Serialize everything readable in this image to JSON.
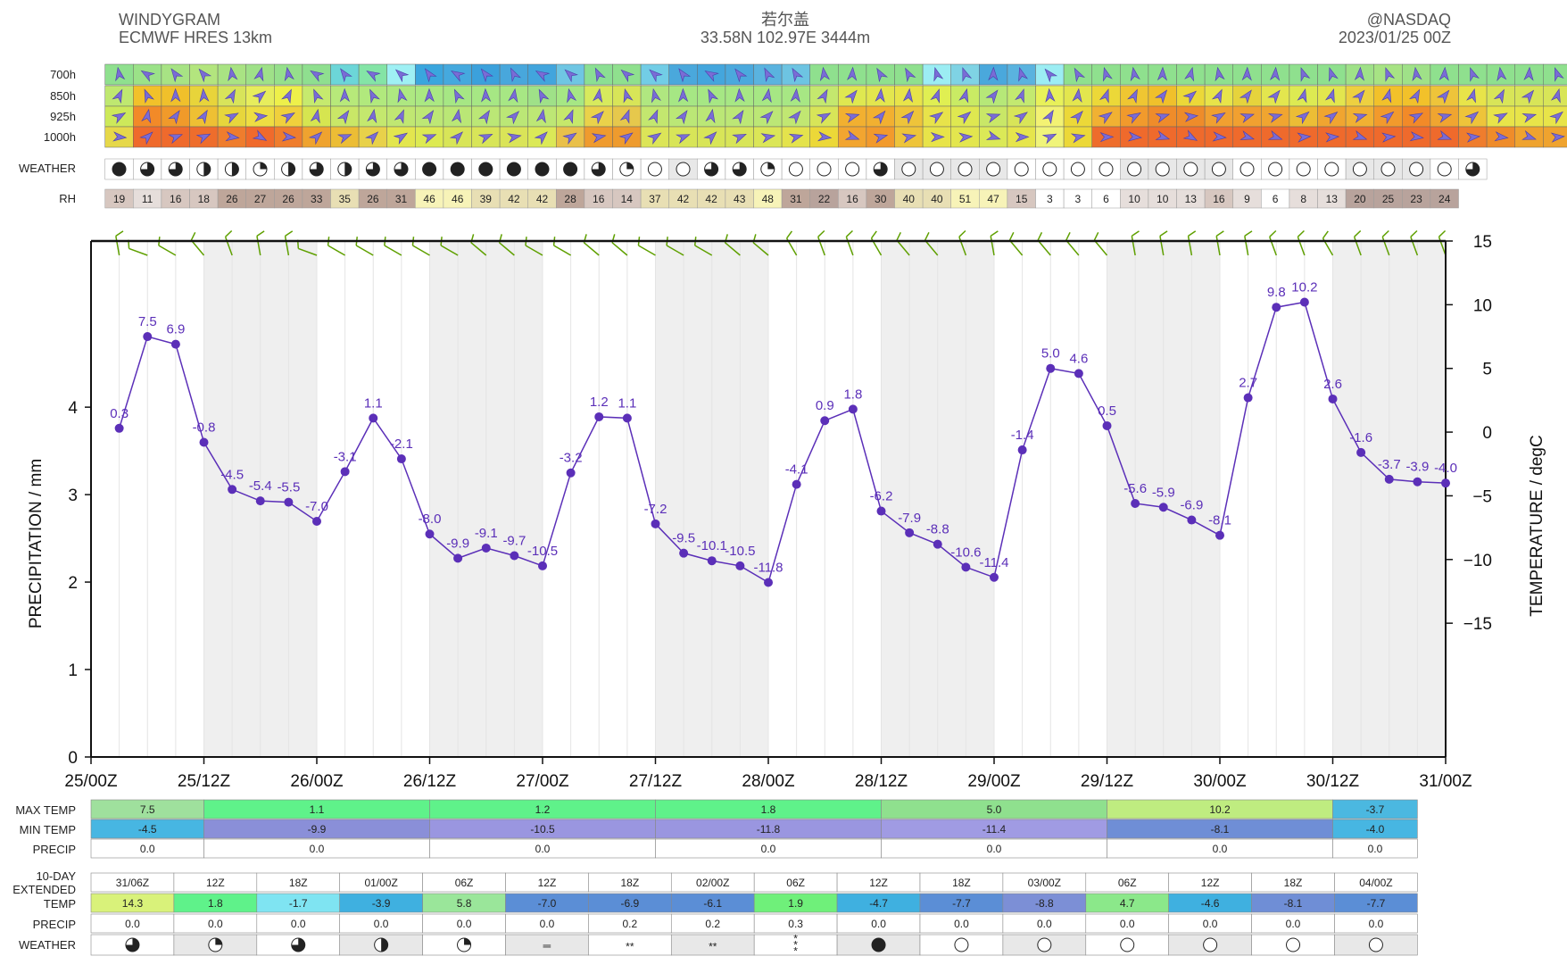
{
  "header": {
    "left_title": "WINDYGRAM",
    "left_sub": "ECMWF HRES 13km",
    "center_title": "若尔盖",
    "center_sub": "33.58N 102.97E 3444m",
    "right_title": "@NASDAQ",
    "right_sub": "2023/01/25 00Z"
  },
  "colors": {
    "temp_line": "#5b2fb8",
    "night_band": "#efefef",
    "wind_barb": "#5fa000",
    "arrow": "#7a6cd6"
  },
  "pressure_rows": {
    "labels": [
      "700h",
      "850h",
      "925h",
      "1000h"
    ],
    "colors": [
      [
        "#8fe08e",
        "#9be288",
        "#a7e384",
        "#b3e57e",
        "#a9e383",
        "#9fe188",
        "#96e08b",
        "#8fdf8f",
        "#6cd6d8",
        "#84e4a6",
        "#9ff0f4",
        "#3aa6de",
        "#45a9de",
        "#3ba1dc",
        "#48a7dc",
        "#42a5dd",
        "#6fc6e3",
        "#8bdf93",
        "#8fe08e",
        "#72cde6",
        "#4aa8dc",
        "#44a6dd",
        "#4ba9dd",
        "#5ab3df",
        "#6dc4e2",
        "#8fe08e",
        "#8fe08e",
        "#8fe08e",
        "#8fe08e",
        "#9cedf3",
        "#7fd3e4",
        "#4aa8dc",
        "#5ab3df",
        "#9cedf3",
        "#8fe08e",
        "#8fe08e",
        "#8fe08e",
        "#8fe08e",
        "#8fe08e",
        "#8fe08e",
        "#8fe08e",
        "#8fe08e",
        "#8fe08e",
        "#8fe08e",
        "#9fe188",
        "#a7e384",
        "#9fe188",
        "#8fe08e",
        "#8fe08e",
        "#8fe08e",
        "#8fe08e",
        "#8fe08e",
        "#8fe08e"
      ],
      [
        "#bfe870",
        "#f2c12a",
        "#f0c02b",
        "#e8d43a",
        "#d8e45a",
        "#e7ed5c",
        "#eef04a",
        "#c6ea6e",
        "#b7e97a",
        "#b1e97d",
        "#aee881",
        "#aae882",
        "#a6e784",
        "#a6e784",
        "#a7e784",
        "#9fe188",
        "#a6e784",
        "#d7ea5d",
        "#d8e558",
        "#b0e780",
        "#a6e784",
        "#a6e784",
        "#a7e784",
        "#a6e784",
        "#a7e784",
        "#c4e86e",
        "#dfe850",
        "#e3e64e",
        "#e8e449",
        "#e0ef52",
        "#c9eb64",
        "#b6e878",
        "#c3e970",
        "#e8f159",
        "#e3e64e",
        "#ecd838",
        "#efc632",
        "#f0c02b",
        "#ecd838",
        "#e8e449",
        "#e6d33c",
        "#e3e64e",
        "#ddea52",
        "#e3e64e",
        "#eed040",
        "#f2c12a",
        "#f2c12a",
        "#eec43a",
        "#e8e449",
        "#d8e558",
        "#d8e558",
        "#d8e558",
        "#d8e558"
      ],
      [
        "#cde95a",
        "#f28a28",
        "#f09a2a",
        "#eec033",
        "#e7d63c",
        "#eede42",
        "#f0d03c",
        "#d6e550",
        "#c9e767",
        "#c4e86e",
        "#c0e772",
        "#bde775",
        "#bae776",
        "#bbe776",
        "#bbe776",
        "#bde775",
        "#c6e86b",
        "#ead24a",
        "#e6c84c",
        "#c3e76f",
        "#bbe776",
        "#bbe776",
        "#bce776",
        "#bce776",
        "#c1e772",
        "#d8e558",
        "#f2b030",
        "#f2b030",
        "#eec43a",
        "#e8e34a",
        "#dfe850",
        "#c9e767",
        "#d8e558",
        "#f3f273",
        "#ecd838",
        "#f1b132",
        "#f19a2c",
        "#ef8c2a",
        "#ee8c2a",
        "#f1a030",
        "#f1a030",
        "#f0a530",
        "#ecbd35",
        "#f0a530",
        "#f1b132",
        "#f29a2c",
        "#f28a28",
        "#f0a530",
        "#eec43a",
        "#e8e449",
        "#e8e449",
        "#e8e449",
        "#e8e449"
      ],
      [
        "#e6d84a",
        "#ef6a2c",
        "#ef6a2c",
        "#ee6d2c",
        "#ef7d2d",
        "#f06a2c",
        "#ef7d2d",
        "#efa32f",
        "#ecbd35",
        "#e8d14a",
        "#e3e64e",
        "#ddea52",
        "#d8e558",
        "#d8e558",
        "#dae458",
        "#dbe957",
        "#e9c04a",
        "#ef9b2e",
        "#ee9b2e",
        "#dce558",
        "#d8e558",
        "#d8e558",
        "#d8e558",
        "#dbe657",
        "#e4e34c",
        "#ecd838",
        "#f2a530",
        "#f29a2c",
        "#eec43a",
        "#e8e449",
        "#e3e64e",
        "#dbe957",
        "#e6e54c",
        "#f0f47a",
        "#ecd838",
        "#ee6d2c",
        "#ef6a2c",
        "#ef6a2c",
        "#ef6a2c",
        "#ef6a2c",
        "#ef6a2c",
        "#ef6a2c",
        "#ef6a2c",
        "#ef6a2c",
        "#ef6a2c",
        "#ef6a2c",
        "#ef6a2c",
        "#ef6a2c",
        "#ef7d2d",
        "#ef8c2a",
        "#efa32f",
        "#efa32f",
        "#efa32f"
      ]
    ]
  },
  "weather_row": {
    "label": "WEATHER",
    "symbols": [
      "full",
      "three",
      "three",
      "half",
      "half",
      "quarter",
      "half",
      "three",
      "half",
      "three",
      "three",
      "full",
      "full",
      "full",
      "full",
      "full",
      "full",
      "three",
      "quarter",
      "empty",
      "empty",
      "three",
      "three",
      "quarter",
      "empty",
      "empty",
      "empty",
      "three",
      "empty",
      "empty",
      "empty",
      "empty",
      "empty",
      "empty",
      "empty",
      "empty",
      "empty",
      "empty",
      "empty",
      "empty",
      "empty",
      "empty",
      "empty",
      "empty",
      "empty",
      "empty",
      "empty",
      "empty",
      "three"
    ]
  },
  "rh_row": {
    "label": "RH",
    "values": [
      "19",
      "11",
      "16",
      "18",
      "26",
      "27",
      "26",
      "33",
      "35",
      "26",
      "31",
      "46",
      "46",
      "39",
      "42",
      "42",
      "28",
      "16",
      "14",
      "37",
      "42",
      "42",
      "43",
      "48",
      "31",
      "22",
      "16",
      "30",
      "40",
      "40",
      "51",
      "47",
      "15",
      "3",
      "3",
      "6",
      "10",
      "10",
      "13",
      "16",
      "9",
      "6",
      "8",
      "13",
      "20",
      "25",
      "23",
      "24"
    ]
  },
  "chart_data": {
    "type": "line",
    "title": "若尔盖",
    "series": [
      {
        "name": "Temperature",
        "values": [
          0.3,
          7.5,
          6.9,
          -0.8,
          -4.5,
          -5.4,
          -5.5,
          -7.0,
          -3.1,
          1.1,
          -2.1,
          -8.0,
          -9.9,
          -9.1,
          -9.7,
          -10.5,
          -3.2,
          1.2,
          1.1,
          -7.2,
          -9.5,
          -10.1,
          -10.5,
          -11.8,
          -4.1,
          0.9,
          1.8,
          -6.2,
          -7.9,
          -8.8,
          -10.6,
          -11.4,
          -1.4,
          5.0,
          4.6,
          0.5,
          -5.6,
          -5.9,
          -6.9,
          -8.1,
          2.7,
          9.8,
          10.2,
          2.6,
          -1.6,
          -3.7,
          -3.9,
          -4.0
        ],
        "labels": [
          "0.3",
          "7.5",
          "6.9",
          "-0.8",
          "-4.5",
          "-5.4",
          "-5.5",
          "-7.0",
          "-3.1",
          "1.1",
          "-2.1",
          "-8.0",
          "-9.9",
          "-9.1",
          "-9.7",
          "-10.5",
          "-3.2",
          "1.2",
          "1.1",
          "-7.2",
          "-9.5",
          "-10.1",
          "-10.5",
          "-11.8",
          "-4.1",
          "0.9",
          "1.8",
          "-6.2",
          "-7.9",
          "-8.8",
          "-10.6",
          "-11.4",
          "-1.4",
          "5.0",
          "4.6",
          "0.5",
          "-5.6",
          "-5.9",
          "-6.9",
          "-8.1",
          "2.7",
          "9.8",
          "10.2",
          "2.6",
          "-1.6",
          "-3.7",
          "-3.9",
          "-4.0"
        ]
      }
    ],
    "x_start_hours": 3,
    "x_step_hours": 3,
    "x_range_hours": [
      0,
      144
    ],
    "xtick_labels": [
      "25/00Z",
      "25/12Z",
      "26/00Z",
      "26/12Z",
      "27/00Z",
      "27/12Z",
      "28/00Z",
      "28/12Z",
      "29/00Z",
      "29/12Z",
      "30/00Z",
      "30/12Z",
      "31/00Z"
    ],
    "xtick_step_hours": 12,
    "ylabel_left": "PRECIPITATION / mm",
    "ylim_left": [
      0,
      5.9
    ],
    "yticks_left": [
      "0",
      "1",
      "2",
      "3",
      "4"
    ],
    "ylabel_right": "TEMPERATURE / degC",
    "ylim_right": [
      -25.5,
      15
    ],
    "yticks_right": [
      15,
      10,
      5,
      0,
      -5,
      -10,
      -15
    ],
    "ytick_labels_right": [
      "15",
      "10",
      "5",
      "0",
      "−5",
      "−10",
      "−15"
    ],
    "night_bands_hours": [
      [
        12,
        24
      ],
      [
        36,
        48
      ],
      [
        60,
        72
      ],
      [
        84,
        96
      ],
      [
        108,
        120
      ],
      [
        132,
        144
      ]
    ],
    "wind_barb_directions_deg": [
      350,
      290,
      300,
      320,
      340,
      350,
      350,
      290,
      300,
      300,
      300,
      300,
      300,
      310,
      310,
      300,
      300,
      310,
      310,
      300,
      300,
      300,
      310,
      310,
      330,
      340,
      340,
      330,
      320,
      320,
      340,
      350,
      320,
      320,
      320,
      320,
      350,
      350,
      350,
      350,
      350,
      340,
      340,
      330,
      340,
      340,
      340,
      340
    ]
  },
  "daily_table": {
    "rows": [
      {
        "label": "MAX TEMP",
        "values": [
          "7.5",
          "1.1",
          "1.2",
          "1.8",
          "5.0",
          "10.2",
          "-3.7"
        ],
        "colors": [
          "#9fe09d",
          "#5ff28a",
          "#5ff28a",
          "#5ff28a",
          "#8fe08e",
          "#bfec80",
          "#4bb8e0"
        ]
      },
      {
        "label": "MIN TEMP",
        "values": [
          "-4.5",
          "-9.9",
          "-10.5",
          "-11.8",
          "-11.4",
          "-8.1",
          "-4.0"
        ],
        "colors": [
          "#47b6e2",
          "#8a8fd8",
          "#9a96e0",
          "#9a96e0",
          "#a09be3",
          "#6f8ed6",
          "#47b6e2"
        ]
      },
      {
        "label": "PRECIP",
        "values": [
          "0.0",
          "0.0",
          "0.0",
          "0.0",
          "0.0",
          "0.0",
          "0.0"
        ],
        "colors": [
          "#ffffff",
          "#ffffff",
          "#ffffff",
          "#ffffff",
          "#ffffff",
          "#ffffff",
          "#ffffff"
        ]
      }
    ]
  },
  "extended": {
    "label_top": "10-DAY",
    "label_bottom": "EXTENDED",
    "times": [
      "31/06Z",
      "12Z",
      "18Z",
      "01/00Z",
      "06Z",
      "12Z",
      "18Z",
      "02/00Z",
      "06Z",
      "12Z",
      "18Z",
      "03/00Z",
      "06Z",
      "12Z",
      "18Z",
      "04/00Z"
    ],
    "temp_label": "TEMP",
    "temps": [
      "14.3",
      "1.8",
      "-1.7",
      "-3.9",
      "5.8",
      "-7.0",
      "-6.9",
      "-6.1",
      "1.9",
      "-4.7",
      "-7.7",
      "-8.8",
      "4.7",
      "-4.6",
      "-8.1",
      "-7.7"
    ],
    "temp_colors": [
      "#d9f27a",
      "#5ff28a",
      "#7fe4f2",
      "#3fb0e0",
      "#9ae69a",
      "#5b8ed6",
      "#5b8ed6",
      "#5b8ed6",
      "#6ff07a",
      "#3fb0e0",
      "#5b8ed6",
      "#7c8fd6",
      "#8be88a",
      "#3fb0e0",
      "#6f8ed6",
      "#5b8ed6"
    ],
    "precip_label": "PRECIP",
    "precip": [
      "0.0",
      "0.0",
      "0.0",
      "0.0",
      "0.0",
      "0.0",
      "0.2",
      "0.2",
      "0.3",
      "0.0",
      "0.0",
      "0.0",
      "0.0",
      "0.0",
      "0.0",
      "0.0"
    ],
    "weather_label": "WEATHER",
    "weather": [
      "three",
      "quarter",
      "three",
      "half",
      "quarter",
      "fog",
      "snow-light",
      "snow-light",
      "snow-mix",
      "full",
      "empty",
      "empty",
      "empty",
      "empty",
      "empty",
      "empty"
    ],
    "weather_text": {
      "fog": "═",
      "snow-light": "**",
      "snow-mix": "*"
    }
  }
}
